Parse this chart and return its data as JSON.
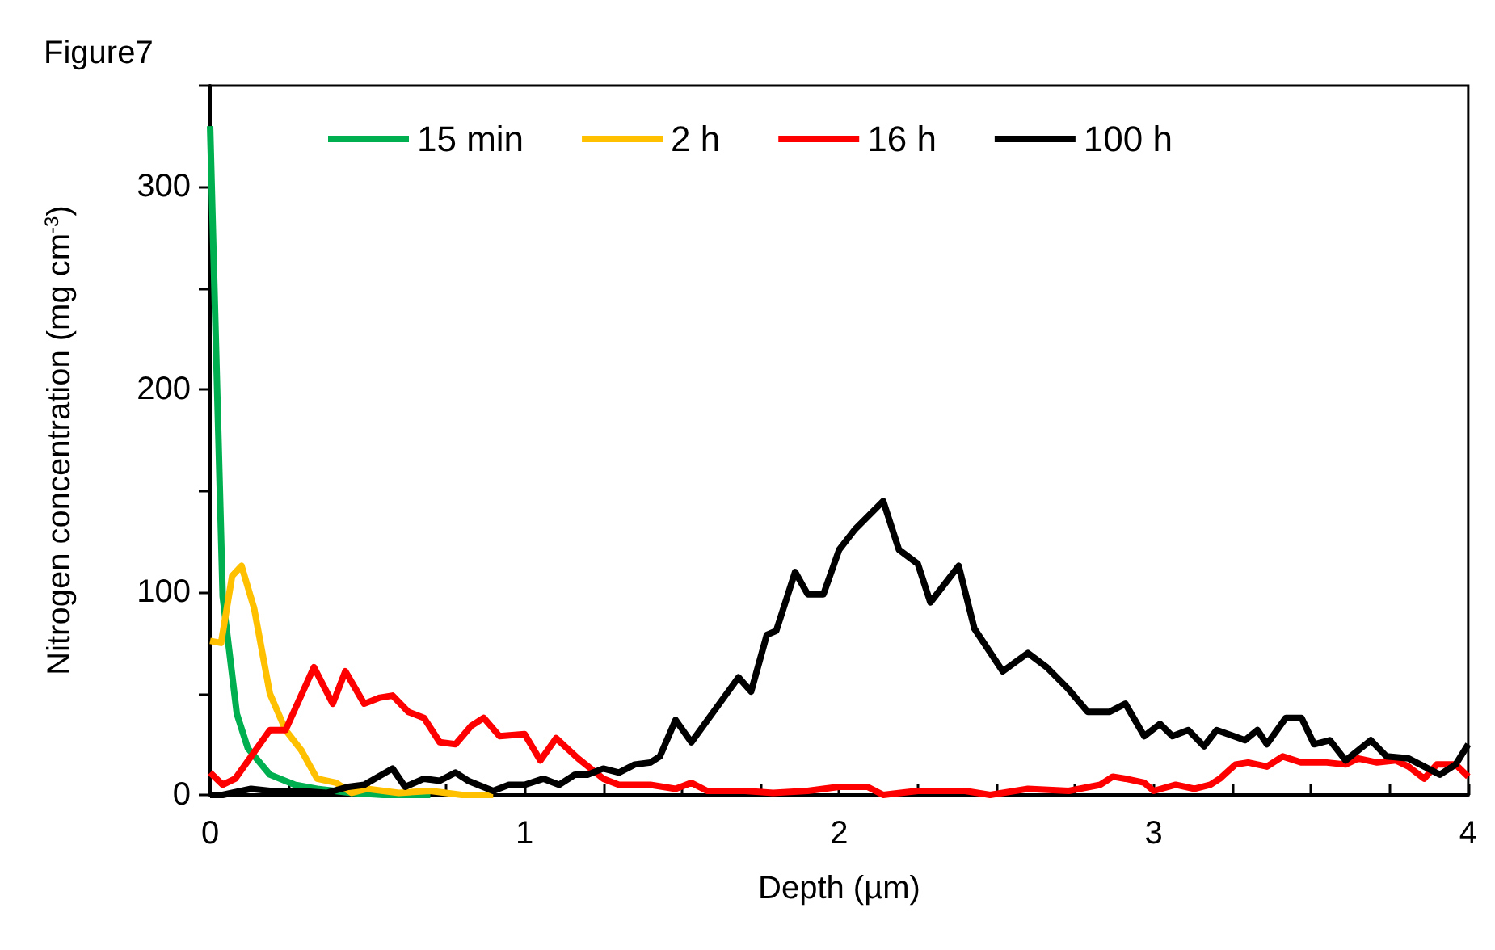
{
  "chart_data": {
    "type": "line",
    "title": "Figure7",
    "xlabel": "Depth (µm)",
    "ylabel": "Nitrogen concentration (mg cm$^{-3}$)",
    "xlim": [
      0,
      4
    ],
    "ylim": [
      0,
      350
    ],
    "xticks": [
      0,
      {
        "value": 0.25,
        "label": null
      },
      {
        "value": 0.5,
        "label": null
      },
      {
        "value": 0.75,
        "label": null
      },
      1,
      {
        "value": 1.25,
        "label": null
      },
      {
        "value": 1.5,
        "label": null
      },
      {
        "value": 1.75,
        "label": null
      },
      2,
      {
        "value": 2.25,
        "label": null
      },
      {
        "value": 2.5,
        "label": null
      },
      {
        "value": 2.75,
        "label": null
      },
      3,
      {
        "value": 3.25,
        "label": null
      },
      {
        "value": 3.5,
        "label": null
      },
      {
        "value": 3.75,
        "label": null
      },
      4
    ],
    "yticks": [
      0,
      {
        "value": 50,
        "label": null
      },
      100,
      {
        "value": 150,
        "label": null
      },
      200,
      {
        "value": 250,
        "label": null
      },
      300,
      {
        "value": 350,
        "label": null
      }
    ],
    "grid": false,
    "legend": "top",
    "marker": "none",
    "line_style": "solid",
    "series": [
      {
        "name": "15 min",
        "color": "#00b050",
        "x": [
          0,
          0.04,
          0.085,
          0.12,
          0.19,
          0.27,
          0.34,
          0.45,
          0.55,
          0.7
        ],
        "values": [
          330,
          98,
          40,
          23,
          10,
          5,
          3,
          1,
          0,
          0
        ]
      },
      {
        "name": "2 h",
        "color": "#ffc000",
        "x": [
          0,
          0.035,
          0.07,
          0.1,
          0.14,
          0.19,
          0.24,
          0.29,
          0.34,
          0.4,
          0.45,
          0.5,
          0.6,
          0.7,
          0.8,
          0.9
        ],
        "values": [
          76,
          75,
          108,
          113,
          92,
          50,
          32,
          22,
          8,
          6,
          1,
          3,
          1,
          2,
          0,
          0
        ]
      },
      {
        "name": "16 h",
        "color": "#ff0000",
        "x": [
          0,
          0.04,
          0.08,
          0.19,
          0.24,
          0.33,
          0.39,
          0.43,
          0.49,
          0.54,
          0.58,
          0.63,
          0.68,
          0.73,
          0.78,
          0.83,
          0.87,
          0.92,
          1.0,
          1.05,
          1.1,
          1.17,
          1.25,
          1.3,
          1.4,
          1.48,
          1.53,
          1.58,
          1.7,
          1.79,
          1.9,
          2.0,
          2.09,
          2.14,
          2.25,
          2.4,
          2.48,
          2.6,
          2.73,
          2.83,
          2.87,
          2.91,
          2.97,
          3.0,
          3.07,
          3.13,
          3.18,
          3.21,
          3.26,
          3.3,
          3.36,
          3.41,
          3.47,
          3.55,
          3.61,
          3.65,
          3.71,
          3.77,
          3.81,
          3.86,
          3.9,
          3.96,
          4.0
        ],
        "values": [
          11,
          5,
          8,
          32,
          32,
          63,
          45,
          61,
          45,
          48,
          49,
          41,
          38,
          26,
          25,
          34,
          38,
          29,
          30,
          17,
          28,
          18,
          8,
          5,
          5,
          3,
          6,
          2,
          2,
          1,
          2,
          4,
          4,
          0,
          2,
          2,
          0,
          3,
          2,
          5,
          9,
          8,
          6,
          2,
          5,
          3,
          5,
          8,
          15,
          16,
          14,
          19,
          16,
          16,
          15,
          18,
          16,
          17,
          14,
          8,
          15,
          15,
          9
        ]
      },
      {
        "name": "100 h",
        "color": "#000000",
        "x": [
          0,
          0.04,
          0.13,
          0.19,
          0.28,
          0.37,
          0.44,
          0.49,
          0.58,
          0.62,
          0.68,
          0.73,
          0.78,
          0.82,
          0.9,
          0.95,
          1.0,
          1.06,
          1.11,
          1.16,
          1.2,
          1.25,
          1.3,
          1.35,
          1.4,
          1.43,
          1.48,
          1.53,
          1.68,
          1.72,
          1.77,
          1.8,
          1.86,
          1.9,
          1.95,
          2.0,
          2.05,
          2.14,
          2.19,
          2.25,
          2.29,
          2.38,
          2.43,
          2.52,
          2.6,
          2.66,
          2.73,
          2.79,
          2.86,
          2.91,
          2.97,
          3.02,
          3.06,
          3.11,
          3.16,
          3.2,
          3.29,
          3.33,
          3.36,
          3.42,
          3.47,
          3.51,
          3.56,
          3.61,
          3.69,
          3.74,
          3.81,
          3.86,
          3.91,
          3.96,
          4.0
        ],
        "values": [
          0,
          0,
          3,
          2,
          2,
          1,
          4,
          5,
          13,
          4,
          8,
          7,
          11,
          7,
          2,
          5,
          5,
          8,
          5,
          10,
          10,
          13,
          11,
          15,
          16,
          19,
          37,
          26,
          58,
          51,
          79,
          81,
          110,
          99,
          99,
          121,
          131,
          145,
          121,
          114,
          95,
          113,
          82,
          61,
          70,
          63,
          52,
          41,
          41,
          45,
          29,
          35,
          29,
          32,
          24,
          32,
          27,
          32,
          25,
          38,
          38,
          25,
          27,
          17,
          27,
          19,
          18,
          14,
          10,
          15,
          25
        ]
      }
    ]
  }
}
